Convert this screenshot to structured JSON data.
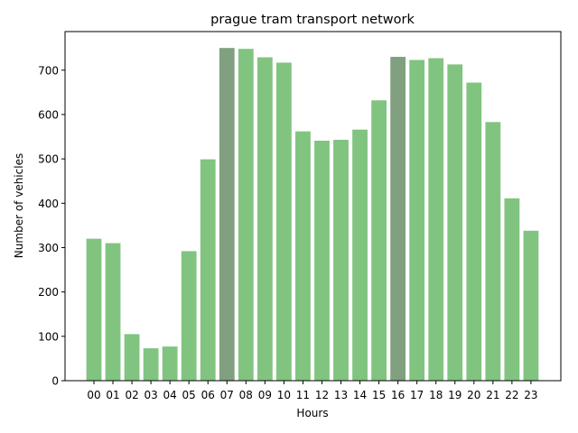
{
  "chart_data": {
    "type": "bar",
    "title": "prague tram transport network",
    "xlabel": "Hours",
    "ylabel": "Number of vehicles",
    "categories": [
      "00",
      "01",
      "02",
      "03",
      "04",
      "05",
      "06",
      "07",
      "08",
      "09",
      "10",
      "11",
      "12",
      "13",
      "14",
      "15",
      "16",
      "17",
      "18",
      "19",
      "20",
      "21",
      "22",
      "23"
    ],
    "values": [
      320,
      310,
      105,
      73,
      77,
      292,
      499,
      750,
      748,
      729,
      717,
      562,
      541,
      543,
      566,
      632,
      730,
      723,
      727,
      713,
      672,
      583,
      411,
      338
    ],
    "highlighted": [
      "07",
      "16"
    ],
    "ylim": [
      0,
      787
    ],
    "yticks": [
      0,
      100,
      200,
      300,
      400,
      500,
      600,
      700
    ],
    "grid": false,
    "colors": {
      "bar": "#80c480",
      "bar_highlight": "#80a080",
      "axis": "#000000"
    }
  }
}
